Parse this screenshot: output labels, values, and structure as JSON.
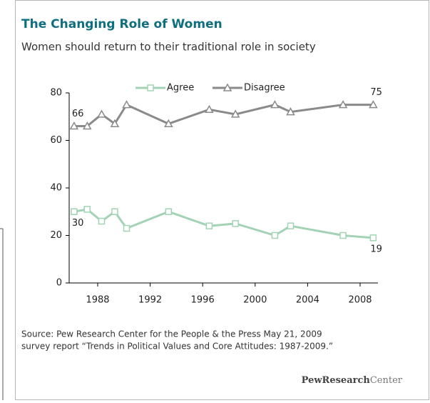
{
  "chart_data": {
    "type": "line",
    "title": "The Changing Role of Women",
    "subtitle": "Women should return to their traditional role in society",
    "x": [
      1986.2,
      1987.2,
      1988.3,
      1989.3,
      1990.2,
      1993.4,
      1996.5,
      1998.5,
      2001.5,
      2002.7,
      2006.7,
      2009.0
    ],
    "series": [
      {
        "name": "Agree",
        "color": "#a3d3b4",
        "marker": "square",
        "values": [
          30,
          31,
          26,
          30,
          23,
          30,
          24,
          25,
          20,
          24,
          20,
          19
        ]
      },
      {
        "name": "Disagree",
        "color": "#8a8a8a",
        "marker": "triangle",
        "values": [
          66,
          66,
          71,
          67,
          75,
          67,
          73,
          71,
          75,
          72,
          75,
          75
        ]
      }
    ],
    "xlim": [
      1985.5,
      2010
    ],
    "xticks": [
      1988,
      1992,
      1996,
      2000,
      2004,
      2008
    ],
    "ylim": [
      0,
      80
    ],
    "yticks": [
      0,
      20,
      40,
      60,
      80
    ],
    "grid": false,
    "legend": "top",
    "source": [
      "Source: Pew Research Center for the People & the Press May 21, 2009",
      "survey report “Trends in Political Values and Core Attitudes: 1987-2009.”"
    ],
    "logo": [
      "PewResearch",
      "Center"
    ]
  }
}
